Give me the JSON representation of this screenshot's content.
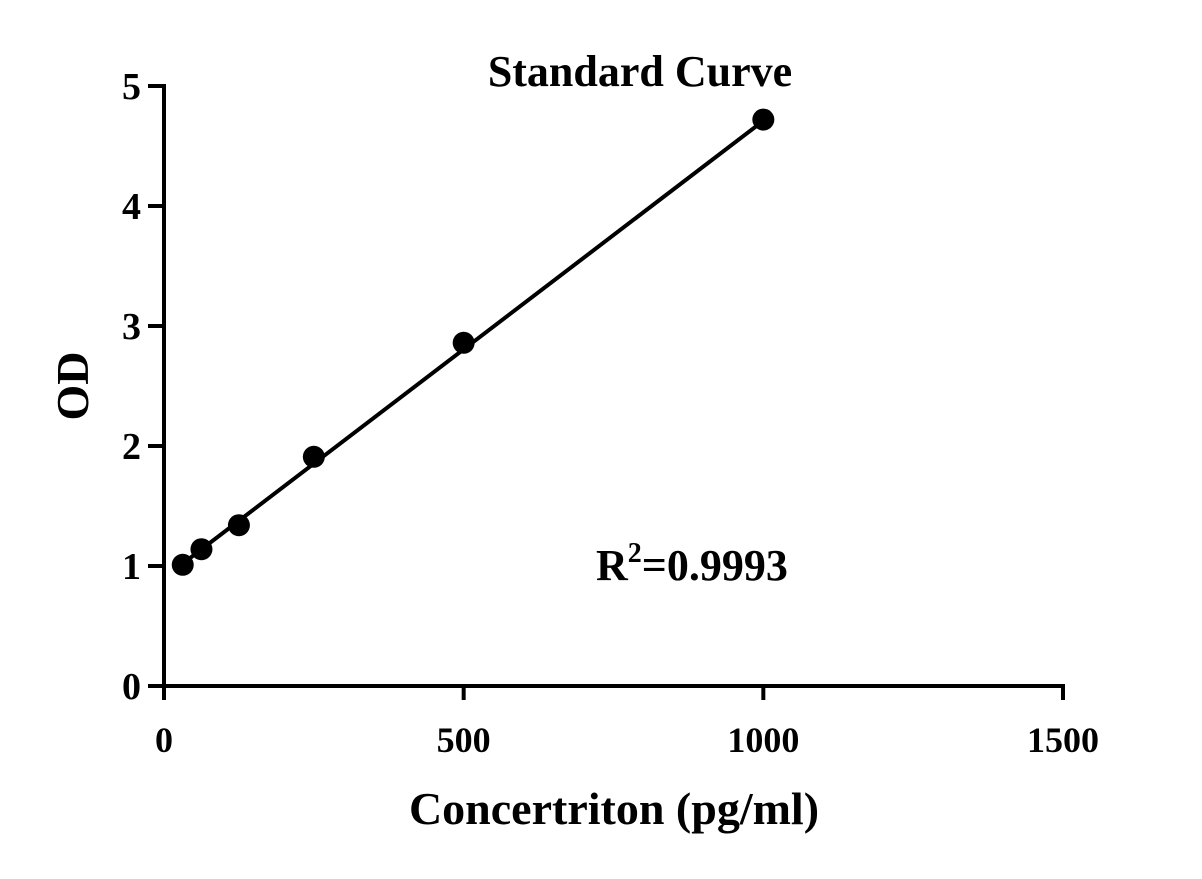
{
  "chart_data": {
    "type": "scatter",
    "title": "Standard Curve",
    "xlabel": "Concertriton (pg/ml)",
    "ylabel": "OD",
    "xlim": [
      0,
      1500
    ],
    "ylim": [
      0,
      5
    ],
    "xticks": [
      0,
      500,
      1000,
      1500
    ],
    "yticks": [
      0,
      1,
      2,
      3,
      4,
      5
    ],
    "xtick_labels": [
      "0",
      "500",
      "1000",
      "1500"
    ],
    "ytick_labels": [
      "0",
      "1",
      "2",
      "3",
      "4",
      "5"
    ],
    "grid": false,
    "legend": "none",
    "series": [
      {
        "x": [
          31.25,
          62.5,
          125,
          250,
          500,
          1000
        ],
        "y": [
          1.01,
          1.14,
          1.34,
          1.91,
          2.86,
          4.72
        ],
        "marker": "circle",
        "color": "#000000"
      }
    ],
    "fit_line": {
      "x": [
        31.25,
        1000
      ],
      "y": [
        1.02,
        4.71
      ]
    },
    "annotation": {
      "base": "R",
      "superscript": "2",
      "value": "=0.9993"
    }
  }
}
